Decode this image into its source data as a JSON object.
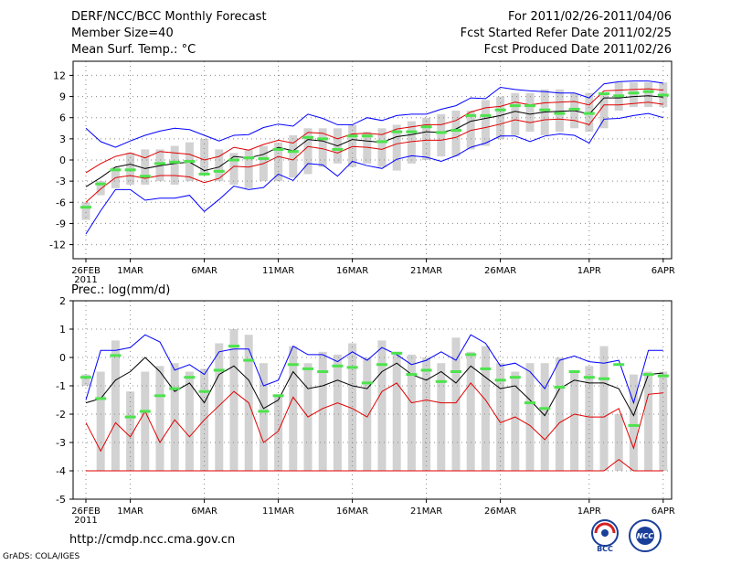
{
  "header": {
    "title": "DERF/NCC/BCC Monthly Forecast",
    "member_size": "Member Size=40",
    "variable": "Mean Surf. Temp.: °C",
    "period": "For 2011/02/26-2011/04/06",
    "started": "Fcst Started Refer Date 2011/02/25",
    "produced": "Fcst Produced Date 2011/02/26"
  },
  "footer": {
    "url": "http://cmdp.ncc.cma.gov.cn",
    "credit": "GrADS: COLA/IGES",
    "logo1_text": "BCC",
    "logo2_text": "NCC"
  },
  "colors": {
    "box": "#d2d2d2",
    "green": "#4de34d",
    "blue": "#0000ff",
    "red": "#e00000",
    "mean": "#000000",
    "grid": "#888888"
  },
  "chart_data": [
    {
      "type": "box-ensemble",
      "title": "Mean Surf. Temp.: °C",
      "x_tick_labels": [
        "26FEB\n2011",
        "1MAR",
        "6MAR",
        "11MAR",
        "16MAR",
        "21MAR",
        "26MAR",
        "1APR",
        "6APR"
      ],
      "ylim": [
        -14,
        14
      ],
      "yticks": [
        -12,
        -9,
        -6,
        -3,
        0,
        3,
        6,
        9,
        12
      ],
      "days": 40,
      "box_low": [
        -8.5,
        -5,
        -4,
        -3.5,
        -3.5,
        -3,
        -3.5,
        -3,
        -2,
        -3,
        -3.5,
        -4,
        -3,
        -3,
        -2.5,
        -2,
        -1,
        -0.5,
        -1,
        -0.5,
        -1,
        -1.5,
        -0.5,
        0,
        0.5,
        0.5,
        1.5,
        2,
        3,
        3.5,
        4,
        3.5,
        4,
        4.5,
        4,
        4.5,
        7,
        7.5,
        7.5,
        7.5
      ],
      "box_high": [
        -6,
        -3,
        -1,
        1,
        1.5,
        1.5,
        2,
        2.5,
        3,
        1.5,
        1,
        1.5,
        2,
        2.5,
        3.5,
        4.5,
        4.5,
        4.5,
        5,
        4,
        4.5,
        5,
        5.5,
        6,
        6.5,
        7,
        7,
        8.5,
        9,
        9.5,
        9.5,
        10,
        10,
        9.5,
        9.5,
        9.5,
        11,
        11,
        11,
        11
      ],
      "green": [
        -6.7,
        -3.4,
        -1.4,
        -1.4,
        -2.3,
        -0.5,
        -0.3,
        -0.2,
        -2,
        -1.6,
        0,
        0.3,
        0.2,
        1.5,
        1.2,
        3.2,
        3,
        1.5,
        3.4,
        3.4,
        2.6,
        4,
        4,
        4.7,
        3.9,
        4.2,
        6.3,
        6.3,
        7.1,
        7.7,
        7.7,
        7.1,
        6.6,
        7.2,
        6.6,
        9.4,
        9.1,
        9.5,
        9.7,
        9.2
      ],
      "mean": [
        -3.8,
        -2.5,
        -1,
        -0.6,
        -1.2,
        -0.8,
        -0.5,
        -0.3,
        -1.5,
        -1,
        0.5,
        0.3,
        0.8,
        1.8,
        1.3,
        2.9,
        2.7,
        2,
        2.9,
        2.7,
        2.5,
        3.3,
        3.6,
        4,
        3.9,
        4.4,
        5.5,
        5.9,
        6.3,
        6.9,
        6.5,
        6.8,
        6.9,
        7,
        6.5,
        8.8,
        8.8,
        9,
        9.1,
        8.9
      ],
      "red_upper": [
        -1.8,
        -0.5,
        0.5,
        1,
        0.3,
        1.2,
        1,
        0.8,
        0,
        0.5,
        1.8,
        1.4,
        2.2,
        2.8,
        2.4,
        3.9,
        3.8,
        3,
        3.7,
        3.8,
        3.6,
        4.4,
        4.7,
        5,
        5,
        5.6,
        6.8,
        7.4,
        7.6,
        8.2,
        7.8,
        8.1,
        8.2,
        8.3,
        7.8,
        9.8,
        9.9,
        10,
        10.1,
        9.9
      ],
      "red_lower": [
        -6,
        -4.1,
        -2.5,
        -2.2,
        -2.6,
        -2.2,
        -2.2,
        -2.4,
        -3.2,
        -2.6,
        -0.9,
        -1,
        -0.5,
        0.5,
        0,
        1.9,
        1.6,
        1,
        1.9,
        1.8,
        1.5,
        2.3,
        2.6,
        2.8,
        2.8,
        3.2,
        4.2,
        4.6,
        5.1,
        5.7,
        5.3,
        5.7,
        5.8,
        5.6,
        5,
        7.8,
        7.8,
        8,
        8.2,
        7.9
      ],
      "blue_upper": [
        4.5,
        2.6,
        1.8,
        2.7,
        3.5,
        4.1,
        4.5,
        4.3,
        3.5,
        2.7,
        3.5,
        3.6,
        4.6,
        5.1,
        4.8,
        6.5,
        5.9,
        5,
        5,
        6,
        5.6,
        6.3,
        6.5,
        6.5,
        7.2,
        7.7,
        8.8,
        8.7,
        10.3,
        10,
        9.8,
        9.7,
        9.5,
        9.5,
        8.8,
        10.8,
        11.1,
        11.2,
        11.2,
        10.9
      ],
      "blue_lower": [
        -10.5,
        -7.2,
        -4.2,
        -4.2,
        -5.7,
        -5.4,
        -5.4,
        -5,
        -7.3,
        -5.6,
        -3.7,
        -4.2,
        -3.9,
        -2,
        -2.9,
        -0.5,
        -0.7,
        -2.3,
        -0.2,
        -0.8,
        -1.2,
        0.1,
        0.6,
        0.4,
        -0.2,
        0.6,
        1.8,
        2.4,
        3.4,
        3.4,
        2.6,
        3.4,
        3.7,
        3.5,
        2.4,
        5.8,
        5.9,
        6.3,
        6.6,
        6
      ]
    },
    {
      "type": "box-ensemble",
      "title": "Prec.: log(mm/d)",
      "x_tick_labels": [
        "26FEB\n2011",
        "1MAR",
        "6MAR",
        "11MAR",
        "16MAR",
        "21MAR",
        "26MAR",
        "1APR",
        "6APR"
      ],
      "ylim": [
        -5,
        2
      ],
      "yticks": [
        -5,
        -4,
        -3,
        -2,
        -1,
        0,
        1,
        2
      ],
      "days": 40,
      "box_low": [
        -1,
        -4,
        -4,
        -4,
        -4,
        -4,
        -4,
        -4,
        -4,
        -4,
        -4,
        -4,
        -4,
        -4,
        -4,
        -4,
        -4,
        -4,
        -4,
        -4,
        -4,
        -4,
        -4,
        -4,
        -4,
        -4,
        -4,
        -4,
        -4,
        -4,
        -4,
        -4,
        -4,
        -4,
        -4,
        -4,
        -4,
        -4,
        -4,
        -4
      ],
      "box_high": [
        -0.6,
        -0.5,
        0.6,
        -1.2,
        -0.5,
        -0.3,
        -0.2,
        -0.5,
        -0.4,
        0.5,
        1,
        0.8,
        -0.2,
        -1.3,
        0.4,
        -0.2,
        0.2,
        0.1,
        0.5,
        0,
        0.6,
        0.2,
        0.1,
        0,
        -0.2,
        0.7,
        0.2,
        0.4,
        -0.2,
        -0.5,
        -0.2,
        -0.2,
        0,
        -0.5,
        -0.3,
        0.4,
        -2,
        -0.6,
        -0.5,
        -0.5
      ],
      "green": [
        -0.7,
        -1.45,
        0.07,
        -2.1,
        -1.9,
        -1.35,
        -1.1,
        -0.7,
        -1.2,
        -0.45,
        0.4,
        -0.1,
        -1.9,
        -1.35,
        -0.25,
        -0.4,
        -0.5,
        -0.3,
        -0.35,
        -0.9,
        -0.25,
        0.15,
        -0.6,
        -0.45,
        -0.85,
        -0.5,
        0.1,
        -0.4,
        -0.8,
        -0.7,
        -1.6,
        -1.8,
        -1.05,
        -0.5,
        -0.7,
        -0.75,
        -0.25,
        -2.4,
        -0.6,
        -0.65
      ],
      "mean": [
        -1.6,
        -1.45,
        -0.8,
        -0.5,
        0,
        -0.5,
        -1.2,
        -0.9,
        -1.6,
        -0.6,
        -0.3,
        -0.8,
        -1.8,
        -1.5,
        -0.5,
        -1.1,
        -1,
        -0.8,
        -1,
        -1.1,
        -0.5,
        -0.2,
        -0.6,
        -0.8,
        -0.5,
        -0.9,
        -0.3,
        -0.7,
        -1.1,
        -1,
        -1.5,
        -2.05,
        -1.1,
        -0.8,
        -0.9,
        -0.9,
        -1.1,
        -2.05,
        -0.6,
        -0.55
      ],
      "red_upper": [
        -2.3,
        -3.3,
        -2.3,
        -2.8,
        -1.9,
        -3,
        -2.2,
        -2.8,
        -2.2,
        -1.7,
        -1.2,
        -1.6,
        -3,
        -2.6,
        -1.4,
        -2.1,
        -1.8,
        -1.6,
        -1.8,
        -2.1,
        -1.2,
        -0.9,
        -1.6,
        -1.5,
        -1.6,
        -1.6,
        -0.9,
        -1.5,
        -2.3,
        -2.1,
        -2.4,
        -2.9,
        -2.3,
        -2,
        -2.1,
        -2.1,
        -1.8,
        -3.2,
        -1.3,
        -1.25
      ],
      "red_lower": [
        -4,
        -4,
        -4,
        -4,
        -4,
        -4,
        -4,
        -4,
        -4,
        -4,
        -4,
        -4,
        -4,
        -4,
        -4,
        -4,
        -4,
        -4,
        -4,
        -4,
        -4,
        -4,
        -4,
        -4,
        -4,
        -4,
        -4,
        -4,
        -4,
        -4,
        -4,
        -4,
        -4,
        -4,
        -4,
        -4,
        -3.6,
        -4,
        -4,
        -4
      ],
      "blue_upper": [
        -1.5,
        0.25,
        0.25,
        0.35,
        0.8,
        0.55,
        -0.45,
        -0.25,
        -0.6,
        0.2,
        0.3,
        0.3,
        -1,
        -0.8,
        0.4,
        0.1,
        0.1,
        -0.15,
        0.2,
        -0.1,
        0.35,
        0.1,
        -0.25,
        -0.1,
        0.2,
        -0.1,
        0.8,
        0.5,
        -0.3,
        -0.2,
        -0.5,
        -1.1,
        -0.1,
        0.05,
        -0.15,
        -0.2,
        -0.1,
        -1.6,
        0.25,
        0.25
      ],
      "blue_lower": [
        null,
        null,
        null,
        null,
        null,
        null,
        null,
        null,
        null,
        null,
        null,
        null,
        null,
        null,
        null,
        null,
        null,
        null,
        null,
        null,
        null,
        null,
        null,
        null,
        null,
        null,
        null,
        null,
        null,
        null,
        null,
        null,
        null,
        null,
        null,
        null,
        null,
        null,
        null,
        null
      ]
    }
  ]
}
